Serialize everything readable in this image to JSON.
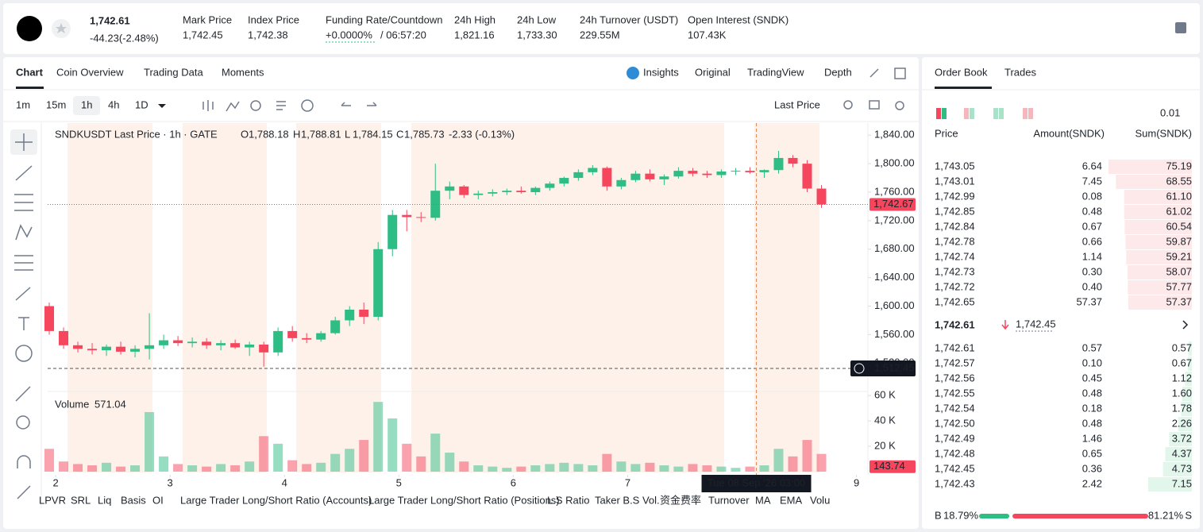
{
  "header": {
    "price": "1,742.61",
    "change": "-44.23(-2.48%)",
    "stats": [
      {
        "label": "Mark Price",
        "value": "1,742.45"
      },
      {
        "label": "Index Price",
        "value": "1,742.38"
      },
      {
        "label": "Funding Rate/Countdown",
        "value": "+0.0000%",
        "extra": "/ 06:57:20"
      },
      {
        "label": "24h High",
        "value": "1,821.16"
      },
      {
        "label": "24h Low",
        "value": "1,733.30"
      },
      {
        "label": "24h Turnover (USDT)",
        "value": "229.55M"
      },
      {
        "label": "Open Interest (SNDK)",
        "value": "107.43K"
      }
    ]
  },
  "chart_tabs": [
    "Chart",
    "Coin Overview",
    "Trading Data",
    "Moments"
  ],
  "view_tabs": [
    "Insights",
    "Original",
    "TradingView",
    "Depth"
  ],
  "intervals": [
    "1m",
    "15m",
    "1h",
    "4h",
    "1D"
  ],
  "price_source": "Last Price",
  "chart_data": {
    "type": "candlestick",
    "title": "SNDKUSDT Last Price · 1h · GATE",
    "ohlc_legend": [
      {
        "label": "O",
        "value": "1,788.18"
      },
      {
        "label": "H",
        "value": "1,788.81"
      },
      {
        "label": "L",
        "value": "1,784.15"
      },
      {
        "label": "C",
        "value": "1,785.73"
      }
    ],
    "legend_change": "-2.33 (-0.13%)",
    "up_color": "#2ebd85",
    "down_color": "#f6465d",
    "x": [
      1.944,
      2.069,
      2.194,
      2.319,
      2.444,
      2.569,
      2.694,
      2.819,
      2.944,
      3.069,
      3.194,
      3.319,
      3.444,
      3.569,
      3.694,
      3.819,
      3.944,
      4.069,
      4.194,
      4.319,
      4.444,
      4.569,
      4.694,
      4.819,
      4.944,
      5.069,
      5.194,
      5.319,
      5.444,
      5.569,
      5.694,
      5.819,
      5.944,
      6.069,
      6.194,
      6.319,
      6.444,
      6.569,
      6.694,
      6.819,
      6.944,
      7.069,
      7.194,
      7.319,
      7.444,
      7.569,
      7.694,
      7.819,
      7.944,
      8.069,
      8.194,
      8.319,
      8.444,
      8.569,
      8.694
    ],
    "open": [
      1600,
      1565,
      1545,
      1540,
      1538,
      1543,
      1536,
      1540,
      1545,
      1552,
      1548,
      1550,
      1545,
      1548,
      1542,
      1546,
      1535,
      1565,
      1555,
      1553,
      1562,
      1580,
      1595,
      1585,
      1680,
      1728,
      1725,
      1724,
      1762,
      1768,
      1756,
      1758,
      1760,
      1762,
      1760,
      1766,
      1772,
      1780,
      1788,
      1794,
      1768,
      1777,
      1786,
      1778,
      1782,
      1790,
      1786,
      1784,
      1789,
      1790,
      1788,
      1791,
      1808,
      1800,
      1765
    ],
    "high": [
      1605,
      1570,
      1550,
      1548,
      1546,
      1550,
      1545,
      1590,
      1560,
      1558,
      1556,
      1555,
      1552,
      1553,
      1550,
      1550,
      1570,
      1572,
      1562,
      1565,
      1585,
      1600,
      1605,
      1690,
      1735,
      1735,
      1732,
      1800,
      1775,
      1770,
      1762,
      1764,
      1765,
      1768,
      1768,
      1775,
      1782,
      1792,
      1798,
      1796,
      1780,
      1790,
      1792,
      1785,
      1795,
      1794,
      1790,
      1792,
      1794,
      1795,
      1792,
      1818,
      1812,
      1805,
      1770
    ],
    "low": [
      1560,
      1540,
      1535,
      1532,
      1530,
      1532,
      1528,
      1525,
      1540,
      1544,
      1542,
      1540,
      1538,
      1540,
      1530,
      1515,
      1530,
      1550,
      1548,
      1550,
      1560,
      1572,
      1575,
      1580,
      1670,
      1705,
      1718,
      1720,
      1750,
      1752,
      1750,
      1754,
      1756,
      1758,
      1756,
      1762,
      1768,
      1776,
      1784,
      1762,
      1764,
      1774,
      1775,
      1770,
      1779,
      1782,
      1780,
      1780,
      1784,
      1786,
      1780,
      1786,
      1795,
      1760,
      1738
    ],
    "close": [
      1565,
      1545,
      1540,
      1538,
      1543,
      1536,
      1540,
      1545,
      1552,
      1548,
      1550,
      1545,
      1548,
      1542,
      1546,
      1535,
      1565,
      1555,
      1553,
      1562,
      1580,
      1595,
      1585,
      1680,
      1728,
      1725,
      1724,
      1762,
      1768,
      1756,
      1758,
      1760,
      1762,
      1760,
      1766,
      1772,
      1780,
      1788,
      1794,
      1768,
      1777,
      1786,
      1778,
      1782,
      1790,
      1786,
      1784,
      1789,
      1790,
      1788,
      1791,
      1808,
      1800,
      1765,
      1742.67
    ],
    "xlim": [
      1.93,
      9.1
    ],
    "xticks": [
      2,
      3,
      4,
      5,
      6,
      7,
      9
    ],
    "ylim": [
      1483.5,
      1857
    ],
    "yticks": [
      {
        "value": 1840,
        "label": "1,840.00"
      },
      {
        "value": 1800,
        "label": "1,800.00"
      },
      {
        "value": 1760,
        "label": "1,760.00"
      },
      {
        "value": 1720,
        "label": "1,720.00"
      },
      {
        "value": 1680,
        "label": "1,680.00"
      },
      {
        "value": 1640,
        "label": "1,640.00"
      },
      {
        "value": 1600,
        "label": "1,600.00"
      },
      {
        "value": 1560,
        "label": "1,560.00"
      },
      {
        "value": 1520,
        "label": "1,520.00"
      }
    ],
    "last_price": {
      "value": 1742.67,
      "label": "1,742.67"
    },
    "crosshair": {
      "price": 1512.45,
      "price_label": "1,512.45",
      "x": 8.125,
      "time_label": "Tue 08 Sep '26  03:00"
    },
    "volume": {
      "title": "Volume",
      "value_label": "571.04",
      "values": [
        18000,
        8000,
        6000,
        5000,
        7000,
        4000,
        5000,
        47000,
        12000,
        6000,
        5000,
        4000,
        6000,
        5000,
        8000,
        28000,
        22000,
        9000,
        6000,
        7000,
        14000,
        18000,
        25000,
        55000,
        42000,
        22000,
        12000,
        30000,
        15000,
        8000,
        5000,
        4000,
        3000,
        4000,
        5000,
        6000,
        7000,
        6000,
        5000,
        14000,
        8000,
        6000,
        7000,
        5000,
        4000,
        6000,
        5000,
        4000,
        3000,
        4000,
        5000,
        18000,
        12000,
        25000,
        14000
      ],
      "ylim": [
        0,
        62000
      ],
      "yticks": [
        {
          "value": 60000,
          "label": "60 K"
        },
        {
          "value": 40000,
          "label": "40 K"
        },
        {
          "value": 20000,
          "label": "20 K"
        }
      ],
      "last": {
        "value": 143.74,
        "label": "143.74"
      }
    }
  },
  "indicators": [
    "LPVR",
    "SRL",
    "Liq",
    "Basis",
    "OI",
    "Large Trader Long/Short Ratio (Accounts)",
    "Large Trader Long/Short Ratio (Positions)",
    "L.S Ratio",
    "Taker B.S Vol.",
    "资金费率",
    "Turnover",
    "MA",
    "EMA",
    "Volu"
  ],
  "order_book": {
    "tabs": [
      "Order Book",
      "Trades"
    ],
    "precision": "0.01",
    "columns": [
      "Price",
      "Amount(SNDK)",
      "Sum(SNDK)"
    ],
    "asks": [
      [
        "1,743.05",
        "6.64",
        "75.19"
      ],
      [
        "1,743.01",
        "7.45",
        "68.55"
      ],
      [
        "1,742.99",
        "0.08",
        "61.10"
      ],
      [
        "1,742.85",
        "0.48",
        "61.02"
      ],
      [
        "1,742.84",
        "0.67",
        "60.54"
      ],
      [
        "1,742.78",
        "0.66",
        "59.87"
      ],
      [
        "1,742.74",
        "1.14",
        "59.21"
      ],
      [
        "1,742.73",
        "0.30",
        "58.07"
      ],
      [
        "1,742.72",
        "0.40",
        "57.77"
      ],
      [
        "1,742.65",
        "57.37",
        "57.37"
      ]
    ],
    "last_price": "1,742.61",
    "mark_price": "1,742.45",
    "bids": [
      [
        "1,742.61",
        "0.57",
        "0.57"
      ],
      [
        "1,742.57",
        "0.10",
        "0.67"
      ],
      [
        "1,742.56",
        "0.45",
        "1.12"
      ],
      [
        "1,742.55",
        "0.48",
        "1.60"
      ],
      [
        "1,742.54",
        "0.18",
        "1.78"
      ],
      [
        "1,742.50",
        "0.48",
        "2.26"
      ],
      [
        "1,742.49",
        "1.46",
        "3.72"
      ],
      [
        "1,742.48",
        "0.65",
        "4.37"
      ],
      [
        "1,742.45",
        "0.36",
        "4.73"
      ],
      [
        "1,742.43",
        "2.42",
        "7.15"
      ]
    ],
    "ratio": {
      "buy_label": "B",
      "buy": "18.79%",
      "sell": "81.21%",
      "sell_label": "S"
    }
  }
}
